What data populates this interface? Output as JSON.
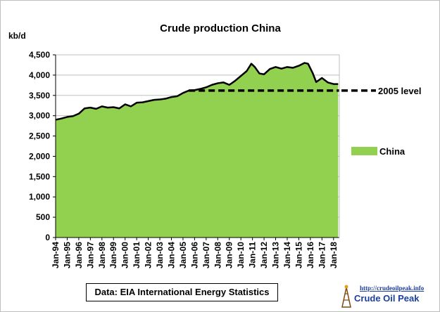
{
  "chart_data": {
    "type": "area",
    "title": "Crude  production China",
    "ylabel": "kb/d",
    "xlabel": "",
    "ylim": [
      0,
      4500
    ],
    "yticks": [
      0,
      500,
      1000,
      1500,
      2000,
      2500,
      3000,
      3500,
      4000,
      4500
    ],
    "ytick_labels": [
      "0",
      "500",
      "1,000",
      "1,500",
      "2,000",
      "2,500",
      "3,000",
      "3,500",
      "4,000",
      "4,500"
    ],
    "xlim": [
      1994.0,
      2018.5
    ],
    "xtick_labels": [
      "Jan-94",
      "Jan-95",
      "Jan-96",
      "Jan-97",
      "Jan-98",
      "Jan-99",
      "Jan-00",
      "Jan-01",
      "Jan-02",
      "Jan-03",
      "Jan-04",
      "Jan-05",
      "Jan-06",
      "Jan-07",
      "Jan-08",
      "Jan-09",
      "Jan-10",
      "Jan-11",
      "Jan-12",
      "Jan-13",
      "Jan-14",
      "Jan-15",
      "Jan-16",
      "Jan-17",
      "Jan-18"
    ],
    "grid": true,
    "legend_position": "right",
    "series": [
      {
        "name": "China",
        "color": "#92d050",
        "x": [
          1994.0,
          1994.5,
          1995.0,
          1995.5,
          1996.0,
          1996.5,
          1997.0,
          1997.5,
          1998.0,
          1998.5,
          1999.0,
          1999.5,
          2000.0,
          2000.5,
          2001.0,
          2001.5,
          2002.0,
          2002.5,
          2003.0,
          2003.5,
          2004.0,
          2004.5,
          2005.0,
          2005.5,
          2006.0,
          2006.5,
          2007.0,
          2007.5,
          2008.0,
          2008.5,
          2009.0,
          2009.5,
          2010.0,
          2010.5,
          2010.9,
          2011.2,
          2011.6,
          2012.0,
          2012.5,
          2013.0,
          2013.5,
          2014.0,
          2014.5,
          2015.0,
          2015.5,
          2015.8,
          2016.2,
          2016.5,
          2017.0,
          2017.5,
          2018.0,
          2018.4
        ],
        "values": [
          2900,
          2930,
          2970,
          2990,
          3050,
          3180,
          3200,
          3170,
          3230,
          3200,
          3210,
          3180,
          3280,
          3230,
          3320,
          3330,
          3360,
          3390,
          3400,
          3420,
          3460,
          3480,
          3560,
          3620,
          3630,
          3660,
          3700,
          3760,
          3800,
          3820,
          3760,
          3860,
          3980,
          4100,
          4280,
          4200,
          4040,
          4020,
          4150,
          4200,
          4160,
          4200,
          4180,
          4230,
          4300,
          4280,
          4050,
          3830,
          3930,
          3820,
          3780,
          3780
        ]
      },
      {
        "name": "2005 level",
        "color": "#000000",
        "style": "dashed",
        "x": [
          2005.5,
          2018.5
        ],
        "values": [
          3620,
          3620
        ]
      }
    ]
  },
  "source_note": "Data: EIA International Energy Statistics",
  "brand": {
    "url": "http://crudeoilpeak.info",
    "name": "Crude Oil Peak"
  }
}
